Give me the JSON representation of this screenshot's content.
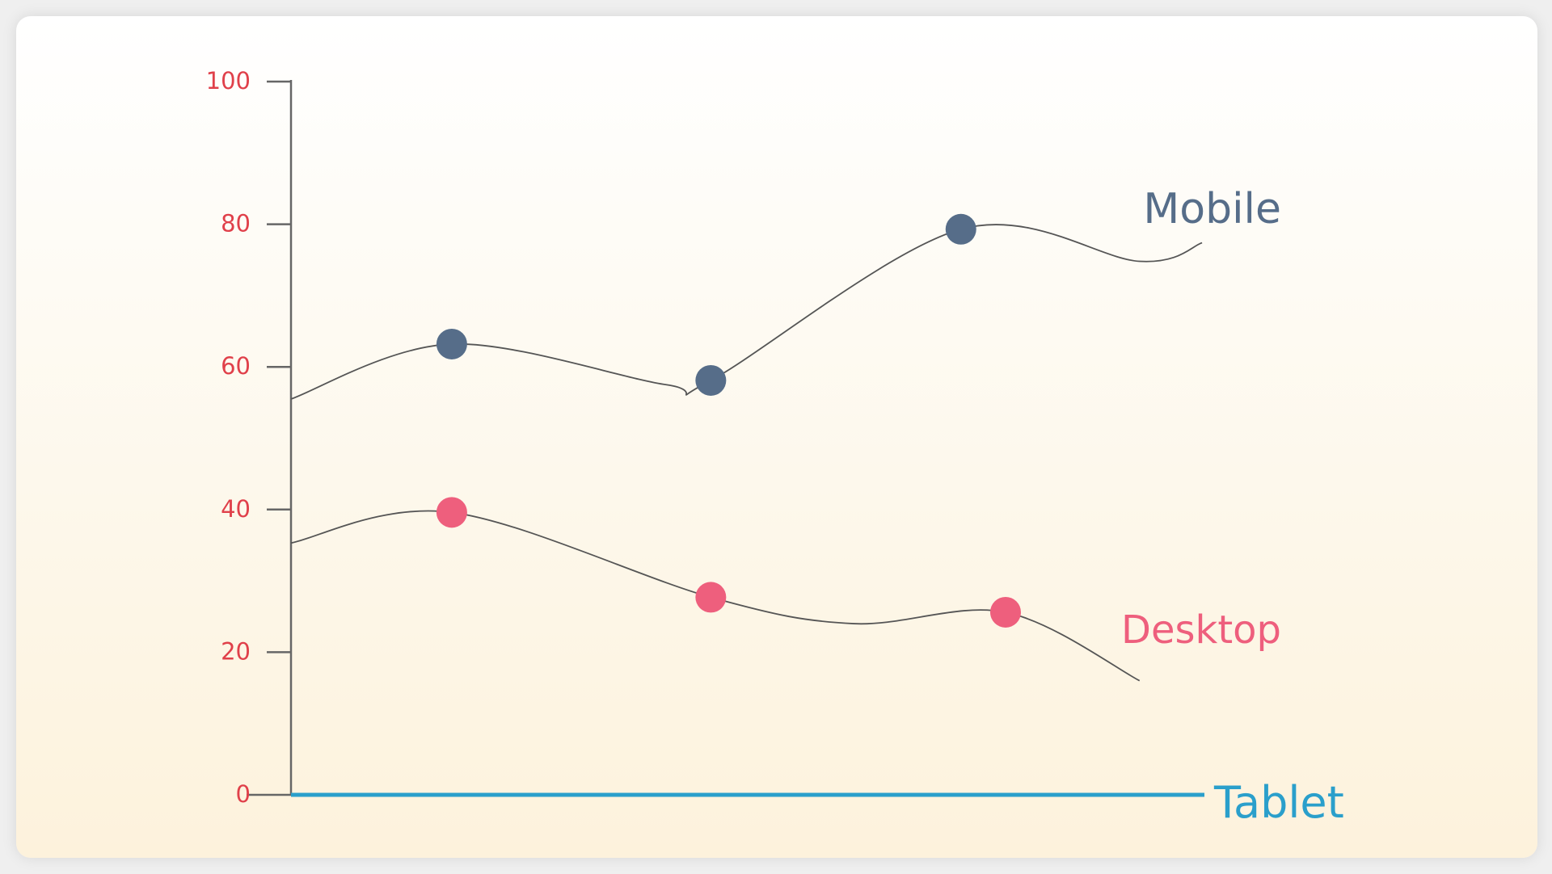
{
  "chart_data": {
    "type": "line",
    "ylim": [
      0,
      100
    ],
    "y_ticks": [
      "0",
      "20",
      "40",
      "60",
      "80",
      "100"
    ],
    "grid": false,
    "series": [
      {
        "name": "Mobile",
        "color": "#566d89",
        "label_color": "#566d89",
        "points": [
          {
            "x": 0.18,
            "y": 63.2
          },
          {
            "x": 0.47,
            "y": 58.1
          },
          {
            "x": 0.75,
            "y": 79.3
          }
        ],
        "curve": [
          {
            "x": 0.0,
            "y": 55.5
          },
          {
            "x": 0.18,
            "y": 63.2
          },
          {
            "x": 0.42,
            "y": 57.5
          },
          {
            "x": 0.47,
            "y": 58.1
          },
          {
            "x": 0.75,
            "y": 79.3
          },
          {
            "x": 0.95,
            "y": 74.8
          },
          {
            "x": 1.02,
            "y": 77.4
          }
        ]
      },
      {
        "name": "Desktop",
        "color": "#ee5f7d",
        "label_color": "#ee5f7d",
        "points": [
          {
            "x": 0.18,
            "y": 39.6
          },
          {
            "x": 0.47,
            "y": 27.7
          },
          {
            "x": 0.8,
            "y": 25.6
          }
        ],
        "curve": [
          {
            "x": 0.0,
            "y": 35.3
          },
          {
            "x": 0.18,
            "y": 39.6
          },
          {
            "x": 0.47,
            "y": 27.7
          },
          {
            "x": 0.63,
            "y": 24.0
          },
          {
            "x": 0.8,
            "y": 25.6
          },
          {
            "x": 0.95,
            "y": 16.0
          }
        ]
      },
      {
        "name": "Tablet",
        "color": "#2a9fcb",
        "label_color": "#2a9fcb",
        "points": [],
        "curve": [
          {
            "x": 0.0,
            "y": 0
          },
          {
            "x": 1.0,
            "y": 0
          }
        ]
      }
    ],
    "colors": {
      "axis": "#666666",
      "tick_label": "#e0404a",
      "curve": "#555555"
    }
  }
}
